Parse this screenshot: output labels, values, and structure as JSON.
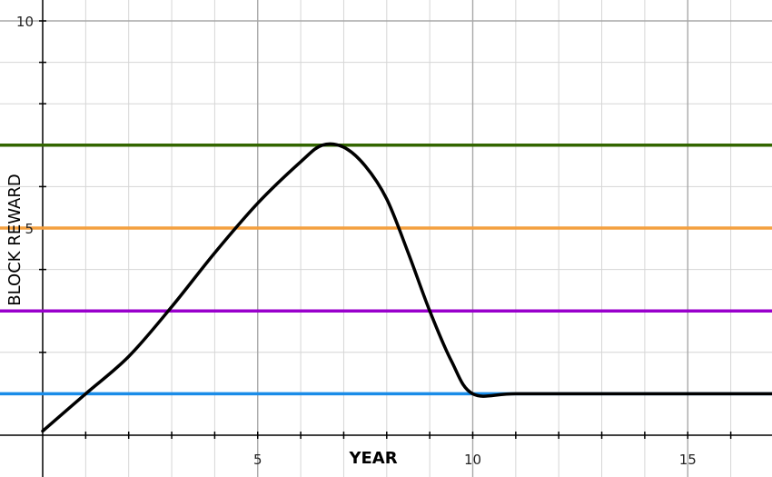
{
  "chart_data": {
    "type": "line",
    "title": "",
    "xlabel": "YEAR",
    "ylabel": "BLOCK REWARD",
    "xlim": [
      -1,
      17
    ],
    "ylim": [
      -0.5,
      10.5
    ],
    "x_tick_labels": [
      {
        "value": 5,
        "label": "5"
      },
      {
        "value": 10,
        "label": "10"
      },
      {
        "value": 15,
        "label": "15"
      }
    ],
    "y_tick_labels": [
      {
        "value": 5,
        "label": "5"
      },
      {
        "value": 10,
        "label": "10"
      }
    ],
    "grid": true,
    "series": [
      {
        "color": "#000000",
        "points": [
          [
            0,
            0.1
          ],
          [
            1,
            1.0
          ],
          [
            2,
            1.9
          ],
          [
            3,
            3.1
          ],
          [
            4,
            4.4
          ],
          [
            5,
            5.6
          ],
          [
            6,
            6.6
          ],
          [
            6.5,
            7.0
          ],
          [
            7,
            6.95
          ],
          [
            7.5,
            6.5
          ],
          [
            8,
            5.7
          ],
          [
            8.5,
            4.4
          ],
          [
            9,
            3.0
          ],
          [
            9.5,
            1.8
          ],
          [
            10,
            1.0
          ],
          [
            11,
            1.0
          ],
          [
            13,
            1.0
          ],
          [
            15,
            1.0
          ],
          [
            17,
            1.0
          ]
        ]
      }
    ],
    "reference_lines": [
      {
        "y": 7,
        "color": "#336600"
      },
      {
        "y": 5,
        "color": "#f4a040"
      },
      {
        "y": 3,
        "color": "#9900cc"
      },
      {
        "y": 1,
        "color": "#1a8ce8"
      }
    ]
  }
}
